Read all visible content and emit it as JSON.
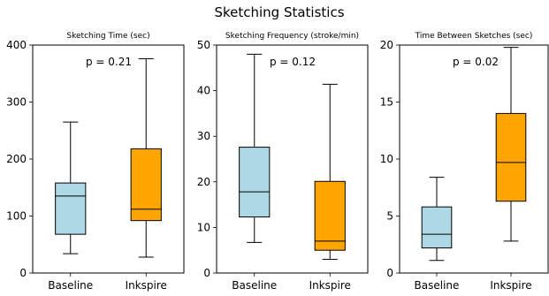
{
  "figure_title": "Sketching Statistics",
  "chart_data": [
    {
      "type": "box",
      "title": "Sketching Time (sec)",
      "categories": [
        "Baseline",
        "Inkspire"
      ],
      "colors": [
        "#add8e6",
        "#ffa500"
      ],
      "ylim": [
        0,
        400
      ],
      "yticks": [
        0,
        100,
        200,
        300,
        400
      ],
      "boxes": [
        {
          "min": 34,
          "q1": 68,
          "median": 135,
          "q3": 158,
          "max": 265
        },
        {
          "min": 28,
          "q1": 92,
          "median": 112,
          "q3": 218,
          "max": 376
        }
      ],
      "annotation": "p = 0.21"
    },
    {
      "type": "box",
      "title": "Sketching Frequency (stroke/min)",
      "categories": [
        "Baseline",
        "Inkspire"
      ],
      "colors": [
        "#add8e6",
        "#ffa500"
      ],
      "ylim": [
        0,
        50
      ],
      "yticks": [
        0,
        10,
        20,
        30,
        40,
        50
      ],
      "boxes": [
        {
          "min": 6.7,
          "q1": 12.3,
          "median": 17.8,
          "q3": 27.6,
          "max": 48.0
        },
        {
          "min": 3.0,
          "q1": 5.0,
          "median": 7.0,
          "q3": 20.1,
          "max": 41.4
        }
      ],
      "annotation": "p = 0.12"
    },
    {
      "type": "box",
      "title": "Time Between Sketches (sec)",
      "categories": [
        "Baseline",
        "Inkspire"
      ],
      "colors": [
        "#add8e6",
        "#ffa500"
      ],
      "ylim": [
        0,
        20
      ],
      "yticks": [
        0,
        5,
        10,
        15,
        20
      ],
      "boxes": [
        {
          "min": 1.1,
          "q1": 2.2,
          "median": 3.4,
          "q3": 5.8,
          "max": 8.4
        },
        {
          "min": 2.8,
          "q1": 6.3,
          "median": 9.7,
          "q3": 14.0,
          "max": 19.8
        }
      ],
      "annotation": "p = 0.02"
    }
  ]
}
